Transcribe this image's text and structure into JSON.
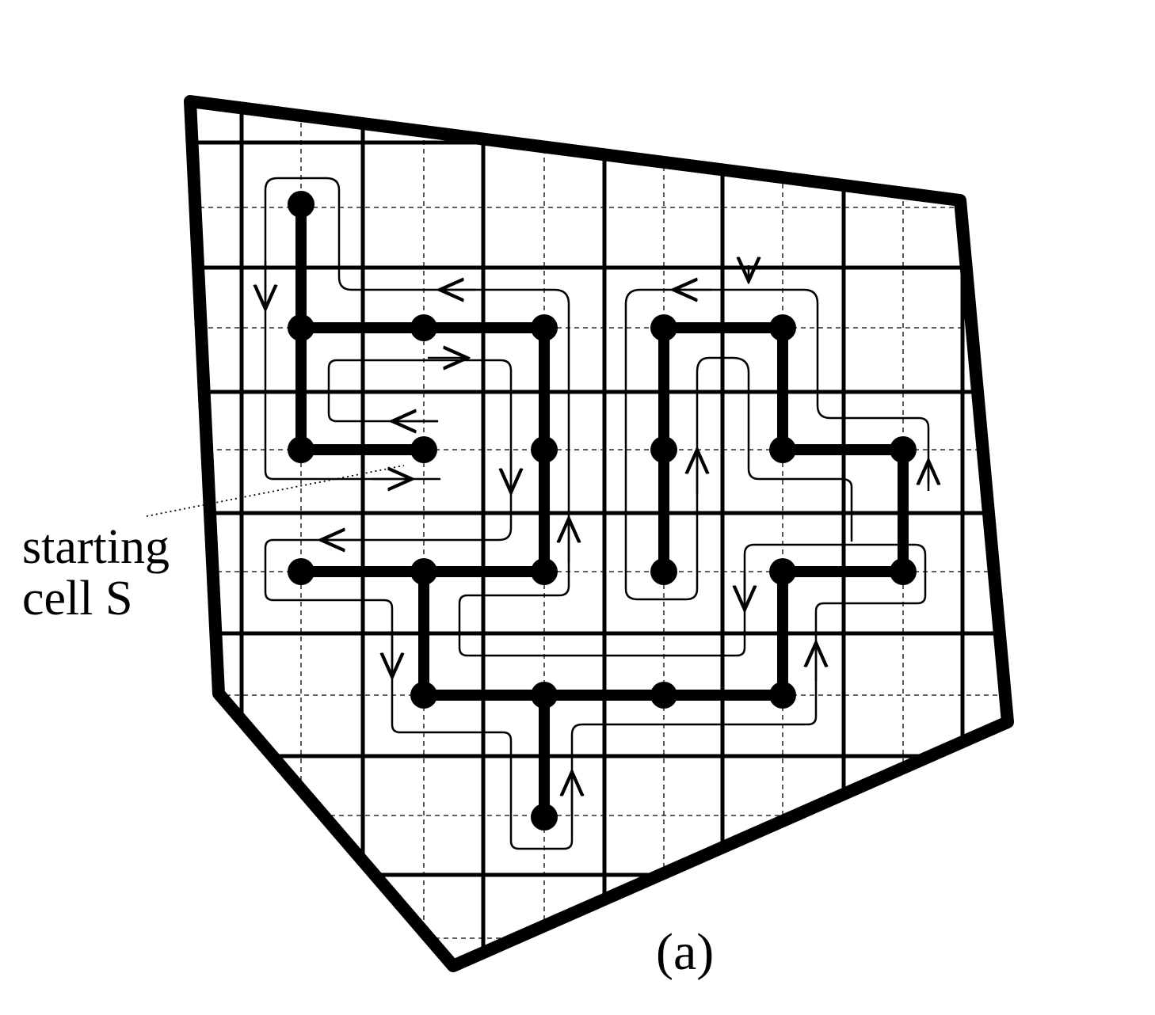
{
  "figure": {
    "annotation_line1": "starting",
    "annotation_line2": "cell S",
    "caption": "(a)"
  },
  "colors": {
    "ink": "#000000",
    "background": "#ffffff"
  }
}
